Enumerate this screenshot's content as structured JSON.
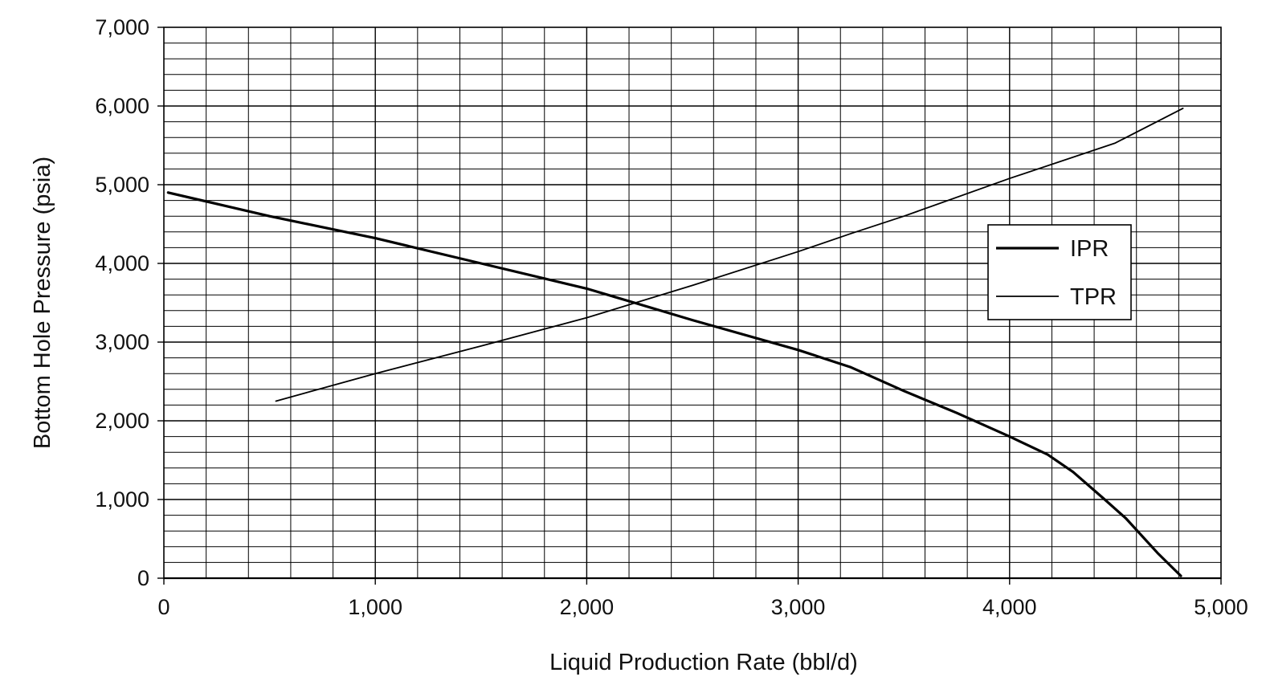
{
  "chart_data": {
    "type": "line",
    "xlabel": "Liquid Production Rate (bbl/d)",
    "ylabel": "Bottom Hole Pressure (psia)",
    "xlim": [
      0,
      5000
    ],
    "ylim": [
      0,
      7000
    ],
    "x_major_ticks": [
      0,
      1000,
      2000,
      3000,
      4000,
      5000
    ],
    "x_tick_labels": [
      "0",
      "1,000",
      "2,000",
      "3,000",
      "4,000",
      "5,000"
    ],
    "y_major_ticks": [
      0,
      1000,
      2000,
      3000,
      4000,
      5000,
      6000,
      7000
    ],
    "y_tick_labels": [
      "0",
      "1,000",
      "2,000",
      "3,000",
      "4,000",
      "5,000",
      "6,000",
      "7,000"
    ],
    "x_minor_step": 200,
    "y_minor_step": 200,
    "grid": true,
    "legend_position": "right",
    "series": [
      {
        "name": "IPR",
        "line_style": "thick",
        "color": "#000000",
        "points": [
          [
            20,
            4900
          ],
          [
            500,
            4600
          ],
          [
            1000,
            4320
          ],
          [
            1500,
            4000
          ],
          [
            2000,
            3680
          ],
          [
            2200,
            3520
          ],
          [
            2500,
            3280
          ],
          [
            3000,
            2900
          ],
          [
            3250,
            2680
          ],
          [
            3500,
            2380
          ],
          [
            3750,
            2100
          ],
          [
            4000,
            1800
          ],
          [
            4180,
            1570
          ],
          [
            4300,
            1350
          ],
          [
            4450,
            1000
          ],
          [
            4550,
            760
          ],
          [
            4700,
            320
          ],
          [
            4810,
            30
          ]
        ]
      },
      {
        "name": "TPR",
        "line_style": "thin",
        "color": "#000000",
        "points": [
          [
            530,
            2250
          ],
          [
            1000,
            2600
          ],
          [
            1500,
            2950
          ],
          [
            2000,
            3310
          ],
          [
            2500,
            3720
          ],
          [
            3000,
            4150
          ],
          [
            3250,
            4380
          ],
          [
            3500,
            4600
          ],
          [
            4000,
            5080
          ],
          [
            4500,
            5530
          ],
          [
            4820,
            5970
          ]
        ]
      }
    ]
  }
}
